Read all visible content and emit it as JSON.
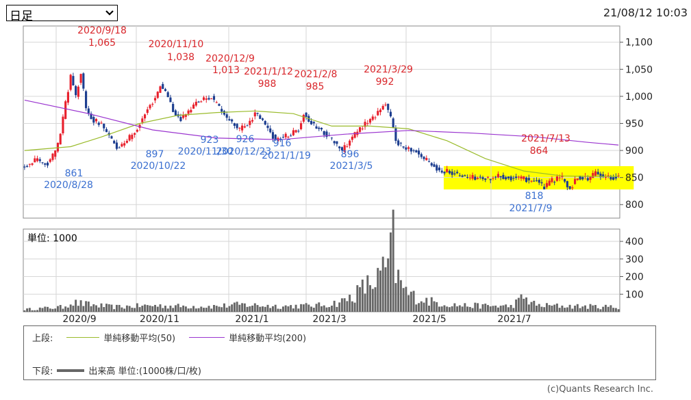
{
  "header": {
    "period_select": "日足",
    "timestamp": "21/08/12 10:03"
  },
  "chart_data": [
    {
      "type": "candlestick",
      "panel": "upper",
      "y_ticks": [
        "1,100",
        "1,050",
        "1,000",
        "950",
        "900",
        "850",
        "800"
      ],
      "y_tick_values": [
        1100,
        1050,
        1000,
        950,
        900,
        850,
        800
      ],
      "ylim": [
        775,
        1130
      ],
      "x_ticks": [
        "2020/9",
        "2020/11",
        "2021/1",
        "2021/3",
        "2021/5",
        "2021/7"
      ],
      "annotations": [
        {
          "date": "2020/9/18",
          "value": "1,065",
          "kind": "high"
        },
        {
          "date": "2020/11/10",
          "value": "1,038",
          "kind": "high"
        },
        {
          "date": "2020/12/9",
          "value": "1,013",
          "kind": "high"
        },
        {
          "date": "2021/1/12",
          "value": "988",
          "kind": "high"
        },
        {
          "date": "2021/2/8",
          "value": "985",
          "kind": "high"
        },
        {
          "date": "2021/3/29",
          "value": "992",
          "kind": "high"
        },
        {
          "date": "2021/7/13",
          "value": "864",
          "kind": "high"
        },
        {
          "date": "2020/8/28",
          "value": "861",
          "kind": "low"
        },
        {
          "date": "2020/10/22",
          "value": "897",
          "kind": "low"
        },
        {
          "date": "2020/11/30",
          "value": "923",
          "kind": "low"
        },
        {
          "date": "2020/12/23",
          "value": "926",
          "kind": "low"
        },
        {
          "date": "2021/1/19",
          "value": "916",
          "kind": "low"
        },
        {
          "date": "2021/3/5",
          "value": "896",
          "kind": "low"
        },
        {
          "date": "2021/7/9",
          "value": "818",
          "kind": "low"
        }
      ],
      "price_path": [
        [
          0,
          870
        ],
        [
          4,
          882
        ],
        [
          9,
          877
        ],
        [
          12,
          898
        ],
        [
          14,
          930
        ],
        [
          16,
          990
        ],
        [
          18,
          1035
        ],
        [
          20,
          1000
        ],
        [
          22,
          1045
        ],
        [
          24,
          975
        ],
        [
          27,
          955
        ],
        [
          30,
          950
        ],
        [
          33,
          925
        ],
        [
          36,
          905
        ],
        [
          38,
          912
        ],
        [
          42,
          928
        ],
        [
          45,
          950
        ],
        [
          48,
          975
        ],
        [
          51,
          998
        ],
        [
          53,
          1020
        ],
        [
          55,
          1010
        ],
        [
          58,
          975
        ],
        [
          61,
          958
        ],
        [
          63,
          965
        ],
        [
          66,
          985
        ],
        [
          70,
          995
        ],
        [
          73,
          998
        ],
        [
          75,
          985
        ],
        [
          78,
          965
        ],
        [
          81,
          950
        ],
        [
          84,
          940
        ],
        [
          87,
          945
        ],
        [
          90,
          968
        ],
        [
          92,
          960
        ],
        [
          95,
          940
        ],
        [
          98,
          920
        ],
        [
          101,
          925
        ],
        [
          104,
          930
        ],
        [
          107,
          940
        ],
        [
          109,
          970
        ],
        [
          112,
          950
        ],
        [
          115,
          940
        ],
        [
          118,
          930
        ],
        [
          121,
          915
        ],
        [
          124,
          900
        ],
        [
          127,
          918
        ],
        [
          130,
          935
        ],
        [
          133,
          950
        ],
        [
          136,
          960
        ],
        [
          139,
          978
        ],
        [
          141,
          985
        ],
        [
          143,
          960
        ],
        [
          145,
          920
        ],
        [
          147,
          908
        ],
        [
          150,
          905
        ],
        [
          153,
          898
        ],
        [
          156,
          885
        ],
        [
          159,
          875
        ],
        [
          162,
          862
        ],
        [
          166,
          862
        ],
        [
          170,
          853
        ],
        [
          175,
          850
        ],
        [
          180,
          848
        ],
        [
          185,
          853
        ],
        [
          190,
          850
        ],
        [
          195,
          847
        ],
        [
          200,
          845
        ],
        [
          203,
          830
        ],
        [
          206,
          845
        ],
        [
          210,
          850
        ],
        [
          213,
          828
        ],
        [
          216,
          852
        ],
        [
          220,
          848
        ],
        [
          223,
          858
        ],
        [
          226,
          853
        ],
        [
          229,
          850
        ],
        [
          232,
          852
        ]
      ],
      "series": [
        {
          "name": "単純移動平均(50)",
          "color": "#9abb2b",
          "points": [
            [
              0,
              900
            ],
            [
              18,
              907
            ],
            [
              30,
              925
            ],
            [
              45,
              950
            ],
            [
              60,
              965
            ],
            [
              75,
              970
            ],
            [
              90,
              973
            ],
            [
              105,
              968
            ],
            [
              120,
              945
            ],
            [
              135,
              945
            ],
            [
              150,
              940
            ],
            [
              165,
              918
            ],
            [
              180,
              885
            ],
            [
              195,
              862
            ],
            [
              210,
              853
            ],
            [
              225,
              852
            ],
            [
              232,
              852
            ]
          ]
        },
        {
          "name": "単純移動平均(200)",
          "color": "#9a34cf",
          "points": [
            [
              0,
              993
            ],
            [
              25,
              968
            ],
            [
              50,
              938
            ],
            [
              75,
              923
            ],
            [
              100,
              920
            ],
            [
              125,
              930
            ],
            [
              150,
              937
            ],
            [
              175,
              932
            ],
            [
              200,
              925
            ],
            [
              220,
              915
            ],
            [
              232,
              910
            ]
          ]
        }
      ],
      "highlight_range": {
        "x_from": 164,
        "x_to": 235,
        "y_from": 828,
        "y_to": 871,
        "color": "#ffff00"
      }
    },
    {
      "type": "bar",
      "panel": "lower",
      "title": "単位: 1000",
      "y_ticks": [
        "400",
        "300",
        "200",
        "100"
      ],
      "y_tick_values": [
        400,
        300,
        200,
        100
      ],
      "ylim": [
        0,
        470
      ],
      "volume_path": [
        [
          0,
          15
        ],
        [
          15,
          30
        ],
        [
          18,
          60
        ],
        [
          25,
          45
        ],
        [
          35,
          30
        ],
        [
          50,
          40
        ],
        [
          60,
          35
        ],
        [
          75,
          35
        ],
        [
          85,
          45
        ],
        [
          100,
          35
        ],
        [
          115,
          40
        ],
        [
          120,
          50
        ],
        [
          125,
          70
        ],
        [
          128,
          100
        ],
        [
          130,
          120
        ],
        [
          133,
          160
        ],
        [
          136,
          180
        ],
        [
          138,
          210
        ],
        [
          140,
          250
        ],
        [
          142,
          300
        ],
        [
          143,
          350
        ],
        [
          144,
          460
        ],
        [
          145,
          250
        ],
        [
          147,
          170
        ],
        [
          150,
          110
        ],
        [
          155,
          80
        ],
        [
          160,
          60
        ],
        [
          170,
          40
        ],
        [
          190,
          35
        ],
        [
          195,
          90
        ],
        [
          200,
          40
        ],
        [
          215,
          35
        ],
        [
          232,
          30
        ]
      ]
    }
  ],
  "legend": {
    "upper_label": "上段:",
    "ma50_label": "単純移動平均(50)",
    "ma200_label": "単純移動平均(200)",
    "lower_label": "下段:",
    "volume_label": "出来高 単位:(1000株/口/枚)"
  },
  "copyright": "(c)Quants Research Inc."
}
